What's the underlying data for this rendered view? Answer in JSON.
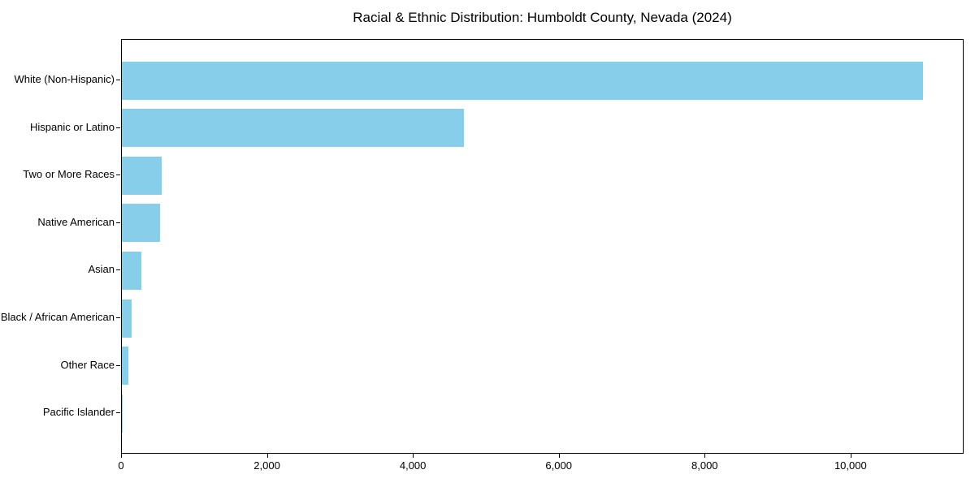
{
  "figure": {
    "title": "Racial & Ethnic Distribution: Humboldt County, Nevada (2024)"
  },
  "chart_data": {
    "type": "bar",
    "orientation": "horizontal",
    "title": "Racial & Ethnic Distribution: Humboldt County, Nevada (2024)",
    "categories": [
      "White (Non-Hispanic)",
      "Hispanic or Latino",
      "Two or More Races",
      "Native American",
      "Asian",
      "Black / African American",
      "Other Race",
      "Pacific Islander"
    ],
    "values": [
      11000,
      4700,
      550,
      520,
      270,
      135,
      90,
      15
    ],
    "xlabel": "",
    "ylabel": "",
    "xlim": [
      0,
      11550
    ],
    "x_ticks": [
      {
        "value": 0,
        "label": "0"
      },
      {
        "value": 2000,
        "label": "2,000"
      },
      {
        "value": 4000,
        "label": "4,000"
      },
      {
        "value": 6000,
        "label": "6,000"
      },
      {
        "value": 8000,
        "label": "8,000"
      },
      {
        "value": 10000,
        "label": "10,000"
      }
    ],
    "bar_color": "#87CEEB",
    "background_color": "#ffffff",
    "grid": false,
    "legend": false
  }
}
